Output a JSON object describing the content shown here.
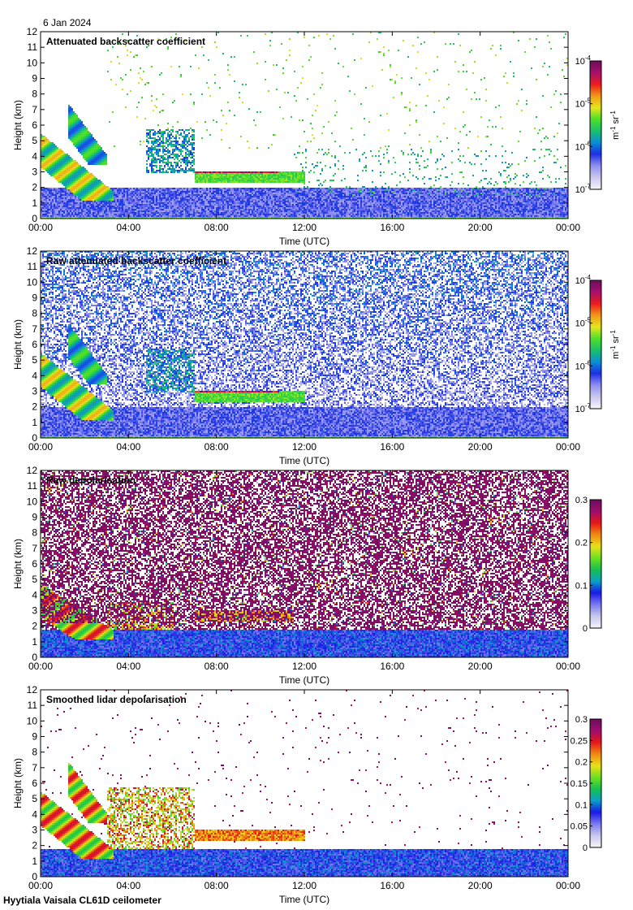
{
  "figure": {
    "date": "6 Jan 2024",
    "footer": "Hyytiala Vaisala CL61D ceilometer"
  },
  "colors": {
    "background": "#ffffff",
    "colormap_backscatter": [
      "#f4f4fb",
      "#c8c8ee",
      "#8f8ff0",
      "#1f2fe6",
      "#0a8fd6",
      "#19c06a",
      "#4ce02a",
      "#e6e61c",
      "#f09a18",
      "#ee1c1c",
      "#a8106c",
      "#6e0e5c"
    ],
    "colormap_depol": [
      "#f4f4fb",
      "#c8c8ee",
      "#7a7af2",
      "#1a1ae6",
      "#0aa0c8",
      "#18c050",
      "#6ce020",
      "#e8e018",
      "#f08c14",
      "#e81818",
      "#a00e6e",
      "#6e0e5c"
    ]
  },
  "chart_data": [
    {
      "type": "heatmap",
      "title": "Attenuated backscatter coefficient",
      "xlabel": "Time (UTC)",
      "ylabel": "Height (km)",
      "xticks": [
        "00:00",
        "04:00",
        "08:00",
        "12:00",
        "16:00",
        "20:00",
        "00:00"
      ],
      "yticks": [
        "0",
        "1",
        "2",
        "3",
        "4",
        "5",
        "6",
        "7",
        "8",
        "9",
        "10",
        "11",
        "12"
      ],
      "xlim_hours": [
        0,
        24
      ],
      "ylim_km": [
        0,
        12
      ],
      "colorbar": {
        "scale": "log",
        "range": [
          1e-07,
          0.0001
        ],
        "ticks": [
          {
            "value": 0.0001,
            "base": "10",
            "exp": "-4"
          },
          {
            "value": 1e-05,
            "base": "10",
            "exp": "-5"
          },
          {
            "value": 1e-06,
            "base": "10",
            "exp": "-6"
          },
          {
            "value": 1e-07,
            "base": "10",
            "exp": "-7"
          }
        ],
        "label_parts": [
          "m",
          "-1",
          " sr",
          "-1"
        ],
        "colormap": "backscatter"
      },
      "noise": "low",
      "features": [
        {
          "kind": "boundary_layer",
          "t": [
            0,
            24
          ],
          "h": [
            0,
            2.0
          ],
          "level": 0.25
        },
        {
          "kind": "surface",
          "t": [
            0,
            24
          ],
          "h": [
            0,
            0.15
          ],
          "level": 0.55
        },
        {
          "kind": "cloud_plume",
          "t": [
            0,
            3.3
          ],
          "h": [
            1.2,
            5.5
          ],
          "level": 0.7
        },
        {
          "kind": "cloud_plume",
          "t": [
            1.2,
            3.0
          ],
          "h": [
            3.5,
            7.5
          ],
          "level": 0.55
        },
        {
          "kind": "cloud_patch",
          "t": [
            4.8,
            7.0
          ],
          "h": [
            3.0,
            5.8
          ],
          "level": 0.45
        },
        {
          "kind": "cloud_layer",
          "t": [
            7.0,
            12.0
          ],
          "h": [
            2.3,
            3.1
          ],
          "level": 0.55
        },
        {
          "kind": "cloud_top",
          "t": [
            7.0,
            10.8
          ],
          "h": [
            2.95,
            3.1
          ],
          "level": 0.9
        },
        {
          "kind": "sparse_precip",
          "t": [
            11.5,
            24
          ],
          "h": [
            1.5,
            4.5
          ],
          "level": 0.35
        },
        {
          "kind": "sparse_high",
          "t": [
            3,
            24
          ],
          "h": [
            4.5,
            12
          ],
          "level": 0.45
        }
      ]
    },
    {
      "type": "heatmap",
      "title": "Raw attenuated backscatter coefficient",
      "xlabel": "Time (UTC)",
      "ylabel": "Height (km)",
      "xticks": [
        "00:00",
        "04:00",
        "08:00",
        "12:00",
        "16:00",
        "20:00",
        "00:00"
      ],
      "yticks": [
        "0",
        "1",
        "2",
        "3",
        "4",
        "5",
        "6",
        "7",
        "8",
        "9",
        "10",
        "11",
        "12"
      ],
      "xlim_hours": [
        0,
        24
      ],
      "ylim_km": [
        0,
        12
      ],
      "colorbar": {
        "scale": "log",
        "range": [
          1e-07,
          0.0001
        ],
        "ticks": [
          {
            "value": 0.0001,
            "base": "10",
            "exp": "-4"
          },
          {
            "value": 1e-05,
            "base": "10",
            "exp": "-5"
          },
          {
            "value": 1e-06,
            "base": "10",
            "exp": "-6"
          },
          {
            "value": 1e-07,
            "base": "10",
            "exp": "-7"
          }
        ],
        "label_parts": [
          "m",
          "-1",
          " sr",
          "-1"
        ],
        "colormap": "backscatter"
      },
      "noise": "high",
      "features": [
        {
          "kind": "boundary_layer",
          "t": [
            0,
            24
          ],
          "h": [
            0,
            2.0
          ],
          "level": 0.25
        },
        {
          "kind": "surface",
          "t": [
            0,
            24
          ],
          "h": [
            0,
            0.15
          ],
          "level": 0.55
        },
        {
          "kind": "cloud_plume",
          "t": [
            0,
            3.3
          ],
          "h": [
            1.2,
            5.5
          ],
          "level": 0.7
        },
        {
          "kind": "cloud_plume",
          "t": [
            1.2,
            3.0
          ],
          "h": [
            3.5,
            7.5
          ],
          "level": 0.55
        },
        {
          "kind": "cloud_patch",
          "t": [
            4.8,
            7.0
          ],
          "h": [
            3.0,
            5.8
          ],
          "level": 0.45
        },
        {
          "kind": "cloud_layer",
          "t": [
            7.0,
            12.0
          ],
          "h": [
            2.3,
            3.1
          ],
          "level": 0.55
        },
        {
          "kind": "cloud_top",
          "t": [
            7.0,
            10.8
          ],
          "h": [
            2.95,
            3.1
          ],
          "level": 0.9
        }
      ]
    },
    {
      "type": "heatmap",
      "title": "Raw depolarisation",
      "xlabel": "Time (UTC)",
      "ylabel": "Height (km)",
      "xticks": [
        "00:00",
        "04:00",
        "08:00",
        "12:00",
        "16:00",
        "20:00",
        "00:00"
      ],
      "yticks": [
        "0",
        "1",
        "2",
        "3",
        "4",
        "5",
        "6",
        "7",
        "8",
        "9",
        "10",
        "11",
        "12"
      ],
      "xlim_hours": [
        0,
        24
      ],
      "ylim_km": [
        0,
        12
      ],
      "colorbar": {
        "scale": "linear",
        "range": [
          0,
          0.3
        ],
        "ticks": [
          {
            "value": 0.3,
            "label": "0.3"
          },
          {
            "value": 0.2,
            "label": "0.2"
          },
          {
            "value": 0.1,
            "label": "0.1"
          },
          {
            "value": 0,
            "label": "0"
          }
        ],
        "colormap": "depol"
      },
      "noise": "depol",
      "features": [
        {
          "kind": "boundary_layer",
          "t": [
            0,
            24
          ],
          "h": [
            0,
            1.8
          ],
          "level": 0.3
        },
        {
          "kind": "cloud_plume",
          "t": [
            0,
            3.3
          ],
          "h": [
            1.2,
            4.8
          ],
          "level": 0.85
        },
        {
          "kind": "cloud_patch",
          "t": [
            3.0,
            6.0
          ],
          "h": [
            1.8,
            3.6
          ],
          "level": 0.8
        },
        {
          "kind": "cloud_layer",
          "t": [
            7.0,
            11.5
          ],
          "h": [
            2.3,
            3.1
          ],
          "level": 0.7
        }
      ]
    },
    {
      "type": "heatmap",
      "title": "Smoothed lidar depolarisation",
      "xlabel": "Time (UTC)",
      "ylabel": "Height (km)",
      "xticks": [
        "00:00",
        "04:00",
        "08:00",
        "12:00",
        "16:00",
        "20:00",
        "00:00"
      ],
      "yticks": [
        "0",
        "1",
        "2",
        "3",
        "4",
        "5",
        "6",
        "7",
        "8",
        "9",
        "10",
        "11",
        "12"
      ],
      "xlim_hours": [
        0,
        24
      ],
      "ylim_km": [
        0,
        12
      ],
      "colorbar": {
        "scale": "linear",
        "range": [
          0,
          0.3
        ],
        "ticks": [
          {
            "value": 0.3,
            "label": "0.3"
          },
          {
            "value": 0.25,
            "label": "0.25"
          },
          {
            "value": 0.2,
            "label": "0.2"
          },
          {
            "value": 0.15,
            "label": "0.15"
          },
          {
            "value": 0.1,
            "label": "0.1"
          },
          {
            "value": 0.05,
            "label": "0.05"
          },
          {
            "value": 0,
            "label": "0"
          }
        ],
        "colormap": "depol"
      },
      "noise": "sparse",
      "features": [
        {
          "kind": "boundary_layer",
          "t": [
            0,
            24
          ],
          "h": [
            0,
            1.8
          ],
          "level": 0.3
        },
        {
          "kind": "cloud_plume",
          "t": [
            0,
            3.3
          ],
          "h": [
            1.2,
            5.5
          ],
          "level": 0.85
        },
        {
          "kind": "cloud_plume",
          "t": [
            1.2,
            3.0
          ],
          "h": [
            3.5,
            7.5
          ],
          "level": 0.85
        },
        {
          "kind": "cloud_patch",
          "t": [
            3.0,
            7.0
          ],
          "h": [
            1.8,
            5.8
          ],
          "level": 0.8
        },
        {
          "kind": "cloud_layer",
          "t": [
            7.0,
            12.0
          ],
          "h": [
            2.3,
            3.1
          ],
          "level": 0.75
        }
      ]
    }
  ]
}
